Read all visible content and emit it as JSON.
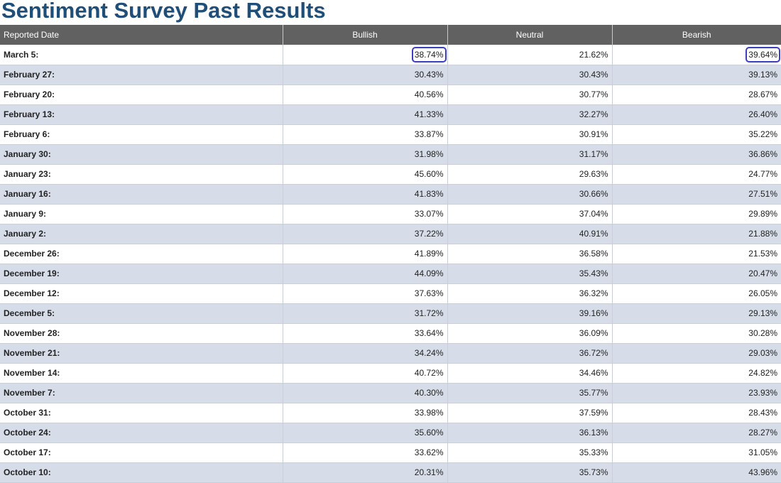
{
  "page": {
    "title": "Sentiment Survey Past Results"
  },
  "table": {
    "headers": [
      "Reported Date",
      "Bullish",
      "Neutral",
      "Bearish"
    ],
    "rows": [
      {
        "date": "March 5:",
        "bullish": "38.74%",
        "neutral": "21.62%",
        "bearish": "39.64%",
        "highlight_bullish": true,
        "highlight_bearish": true
      },
      {
        "date": "February 27:",
        "bullish": "30.43%",
        "neutral": "30.43%",
        "bearish": "39.13%"
      },
      {
        "date": "February 20:",
        "bullish": "40.56%",
        "neutral": "30.77%",
        "bearish": "28.67%"
      },
      {
        "date": "February 13:",
        "bullish": "41.33%",
        "neutral": "32.27%",
        "bearish": "26.40%"
      },
      {
        "date": "February 6:",
        "bullish": "33.87%",
        "neutral": "30.91%",
        "bearish": "35.22%"
      },
      {
        "date": "January 30:",
        "bullish": "31.98%",
        "neutral": "31.17%",
        "bearish": "36.86%"
      },
      {
        "date": "January 23:",
        "bullish": "45.60%",
        "neutral": "29.63%",
        "bearish": "24.77%"
      },
      {
        "date": "January 16:",
        "bullish": "41.83%",
        "neutral": "30.66%",
        "bearish": "27.51%"
      },
      {
        "date": "January 9:",
        "bullish": "33.07%",
        "neutral": "37.04%",
        "bearish": "29.89%"
      },
      {
        "date": "January 2:",
        "bullish": "37.22%",
        "neutral": "40.91%",
        "bearish": "21.88%"
      },
      {
        "date": "December 26:",
        "bullish": "41.89%",
        "neutral": "36.58%",
        "bearish": "21.53%"
      },
      {
        "date": "December 19:",
        "bullish": "44.09%",
        "neutral": "35.43%",
        "bearish": "20.47%"
      },
      {
        "date": "December 12:",
        "bullish": "37.63%",
        "neutral": "36.32%",
        "bearish": "26.05%"
      },
      {
        "date": "December 5:",
        "bullish": "31.72%",
        "neutral": "39.16%",
        "bearish": "29.13%"
      },
      {
        "date": "November 28:",
        "bullish": "33.64%",
        "neutral": "36.09%",
        "bearish": "30.28%"
      },
      {
        "date": "November 21:",
        "bullish": "34.24%",
        "neutral": "36.72%",
        "bearish": "29.03%"
      },
      {
        "date": "November 14:",
        "bullish": "40.72%",
        "neutral": "34.46%",
        "bearish": "24.82%"
      },
      {
        "date": "November 7:",
        "bullish": "40.30%",
        "neutral": "35.77%",
        "bearish": "23.93%"
      },
      {
        "date": "October 31:",
        "bullish": "33.98%",
        "neutral": "37.59%",
        "bearish": "28.43%"
      },
      {
        "date": "October 24:",
        "bullish": "35.60%",
        "neutral": "36.13%",
        "bearish": "28.27%"
      },
      {
        "date": "October 17:",
        "bullish": "33.62%",
        "neutral": "35.33%",
        "bearish": "31.05%"
      },
      {
        "date": "October 10:",
        "bullish": "20.31%",
        "neutral": "35.73%",
        "bearish": "43.96%"
      }
    ]
  },
  "colors": {
    "title": "#1f4e79",
    "header_bg": "#616161",
    "row_alt": "#d6dde8",
    "highlight_border": "#3b3fbf"
  }
}
